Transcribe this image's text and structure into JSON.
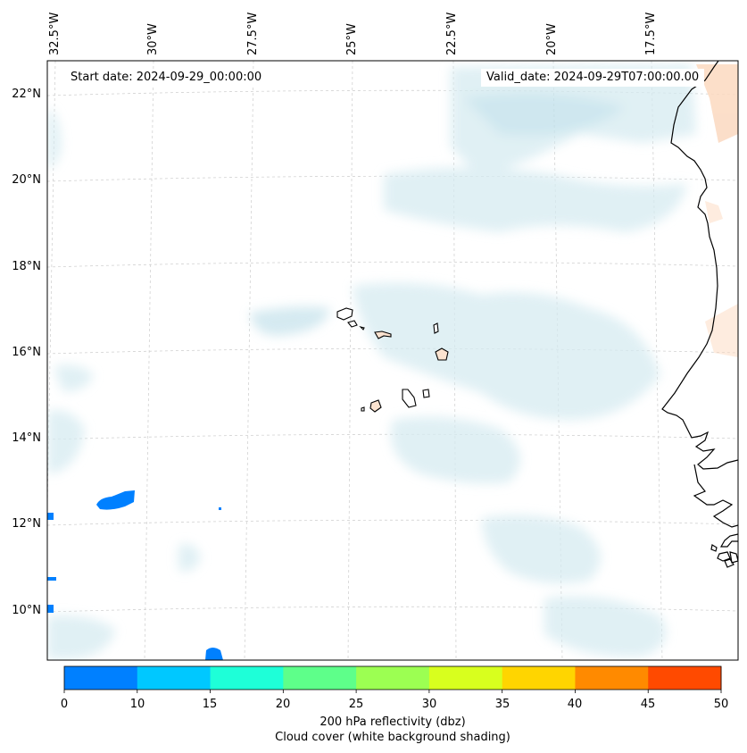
{
  "map": {
    "start_date": "Start date: 2024-09-29_00:00:00",
    "valid_date": "Valid_date: 2024-09-29T07:00:00.00",
    "longitude_labels": [
      "32.5°W",
      "30°W",
      "27.5°W",
      "25°W",
      "22.5°W",
      "20°W",
      "17.5°W"
    ],
    "latitude_labels": [
      "22°N",
      "20°N",
      "18°N",
      "16°N",
      "14°N",
      "12°N",
      "10°N"
    ],
    "gridlines": true,
    "colors": {
      "coastline": "#000000",
      "gridline": "#cccccc",
      "cloud_shading": "#d6ebf1",
      "warm_shading": "#fbd9c0",
      "frame": "#000000"
    }
  },
  "colorbar": {
    "ticks": [
      "0",
      "10",
      "15",
      "20",
      "25",
      "30",
      "35",
      "40",
      "45",
      "50"
    ],
    "colors": [
      "#0080ff",
      "#00c8ff",
      "#1effd8",
      "#5eff8a",
      "#9cff52",
      "#d8ff1e",
      "#ffd500",
      "#ff8a00",
      "#ff4a00"
    ],
    "label_line1": "200 hPa reflectivity (dbz)",
    "label_line2": "Cloud cover (white background shading)"
  }
}
